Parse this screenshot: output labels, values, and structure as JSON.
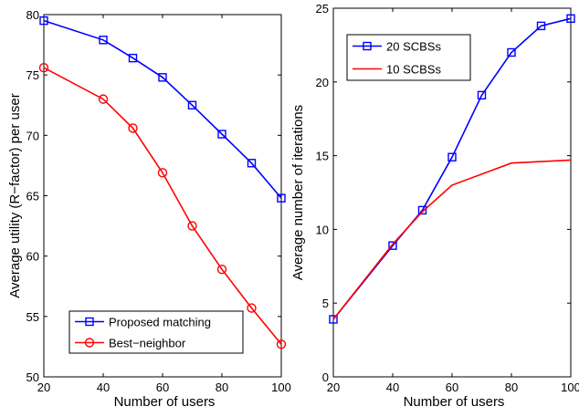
{
  "chart_data": [
    {
      "type": "line",
      "xlabel": "Number of users",
      "ylabel": "Average utility (R−factor) per user",
      "xlim": [
        20,
        100
      ],
      "ylim": [
        50,
        80
      ],
      "xticks": [
        "20",
        "40",
        "60",
        "80",
        "100"
      ],
      "yticks": [
        "50",
        "55",
        "60",
        "65",
        "70",
        "75",
        "80"
      ],
      "grid": false,
      "legend_position": "bottom-left",
      "series": [
        {
          "name": "Proposed matching",
          "color": "#0000ff",
          "marker": "square",
          "x": [
            20,
            40,
            50,
            60,
            70,
            80,
            90,
            100
          ],
          "y": [
            79.5,
            77.9,
            76.4,
            74.8,
            72.5,
            70.1,
            67.7,
            64.8
          ]
        },
        {
          "name": "Best−neighbor",
          "color": "#ff0000",
          "marker": "circle",
          "x": [
            20,
            40,
            50,
            60,
            70,
            80,
            90,
            100
          ],
          "y": [
            75.6,
            73.0,
            70.6,
            66.9,
            62.5,
            58.9,
            55.7,
            52.7
          ]
        }
      ]
    },
    {
      "type": "line",
      "xlabel": "Number of users",
      "ylabel": "Average number of iterations",
      "xlim": [
        20,
        100
      ],
      "ylim": [
        0,
        25
      ],
      "xticks": [
        "20",
        "40",
        "60",
        "80",
        "100"
      ],
      "yticks": [
        "0",
        "5",
        "10",
        "15",
        "20",
        "25"
      ],
      "grid": false,
      "legend_position": "top-left",
      "series": [
        {
          "name": "20 SCBSs",
          "color": "#0000ff",
          "marker": "square",
          "x": [
            20,
            40,
            50,
            60,
            70,
            80,
            90,
            100
          ],
          "y": [
            3.9,
            8.9,
            11.3,
            14.9,
            19.1,
            22.0,
            23.8,
            24.3
          ]
        },
        {
          "name": "10 SCBSs",
          "color": "#ff0000",
          "marker": "none",
          "x": [
            20,
            40,
            50,
            60,
            80,
            100
          ],
          "y": [
            3.9,
            9.0,
            11.2,
            13.0,
            14.5,
            14.7
          ]
        }
      ]
    }
  ]
}
